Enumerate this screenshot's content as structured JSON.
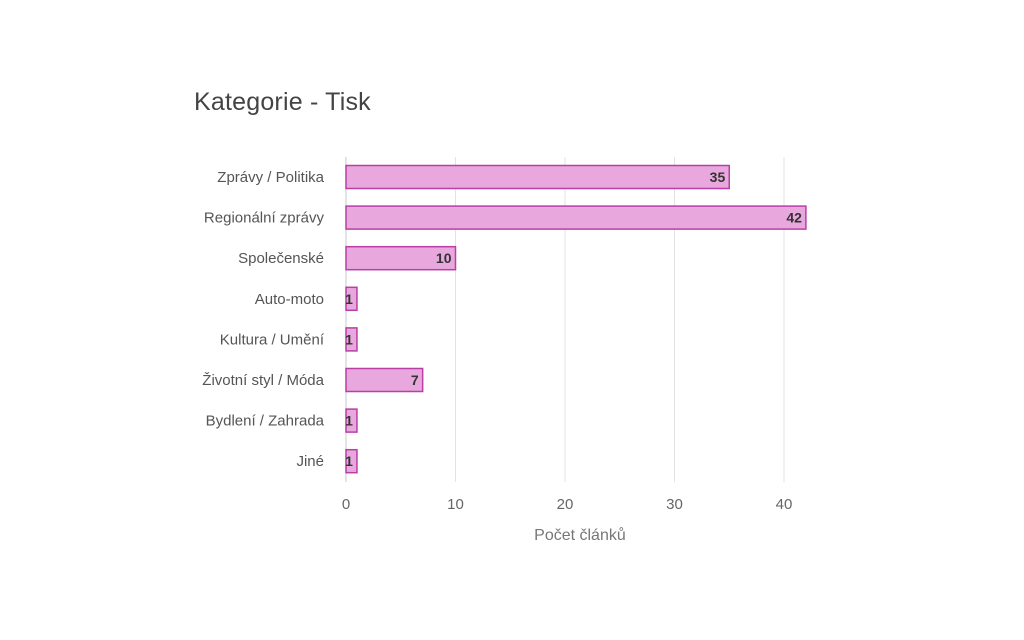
{
  "chart_data": {
    "type": "bar",
    "orientation": "horizontal",
    "title": "Kategorie - Tisk",
    "xlabel": "Počet článků",
    "ylabel": "",
    "categories": [
      "Zprávy / Politika",
      "Regionální zprávy",
      "Společenské",
      "Auto-moto",
      "Kultura / Umění",
      "Životní styl / Móda",
      "Bydlení / Zahrada",
      "Jiné"
    ],
    "values": [
      35,
      42,
      10,
      1,
      1,
      7,
      1,
      1
    ],
    "xlim": [
      0,
      42
    ],
    "xticks": [
      0,
      10,
      20,
      30,
      40
    ],
    "grid": true,
    "legend": "none",
    "colors": {
      "bar_fill": "#e8a8dd",
      "bar_stroke": "#b83fa6",
      "grid": "#e3e3e3",
      "axis": "#c8c8c8"
    }
  }
}
